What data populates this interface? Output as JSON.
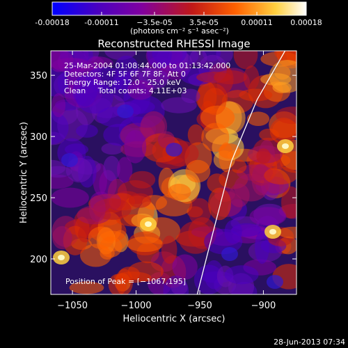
{
  "chart_data": {
    "type": "heatmap",
    "title": "Reconstructed RHESSI Image",
    "xlabel": "Heliocentric X (arcsec)",
    "ylabel": "Heliocentric Y (arcsec)",
    "xlim": [
      -1067,
      -874
    ],
    "ylim": [
      171,
      370
    ],
    "x_ticks": [
      -1050,
      -1000,
      -950,
      -900
    ],
    "x_tick_labels": [
      "−1050",
      "−1000",
      "−950",
      "−900"
    ],
    "y_ticks": [
      200,
      250,
      300,
      350
    ],
    "y_tick_labels": [
      "200",
      "250",
      "300",
      "350"
    ],
    "colorbar": {
      "range": [
        -0.00018,
        0.00018
      ],
      "ticks": [
        -0.00018,
        -0.00011,
        -3.5e-05,
        3.5e-05,
        0.00011,
        0.00018
      ],
      "tick_labels": [
        "-0.00018",
        "-0.00011",
        "−3.5e-05",
        "3.5e-05",
        "0.00011",
        "0.00018"
      ],
      "units_label": "(photons cm⁻² s⁻¹ asec⁻²)",
      "stops": [
        "#0000ff",
        "#4a00c0",
        "#8000a0",
        "#c01818",
        "#ff6000",
        "#ffd040",
        "#ffffff"
      ]
    },
    "annotations": [
      "25-Mar-2004 01:08:44.000 to 01:13:42.000",
      "Detectors: 4F 5F 6F 7F 8F, Att 0",
      "Energy Range: 12.0 - 25.0 keV",
      "Clean     Total counts: 4.11E+03"
    ],
    "peak_label": "Position of Peak = [−1067,195]",
    "peak": [
      -1067,
      195
    ],
    "limb_curve": [
      [
        -952,
        171
      ],
      [
        -940,
        220
      ],
      [
        -925,
        280
      ],
      [
        -905,
        330
      ],
      [
        -883,
        370
      ]
    ],
    "grid": false,
    "legend": "none"
  },
  "footer": {
    "date_text": "28-Jun-2013 07:34"
  }
}
